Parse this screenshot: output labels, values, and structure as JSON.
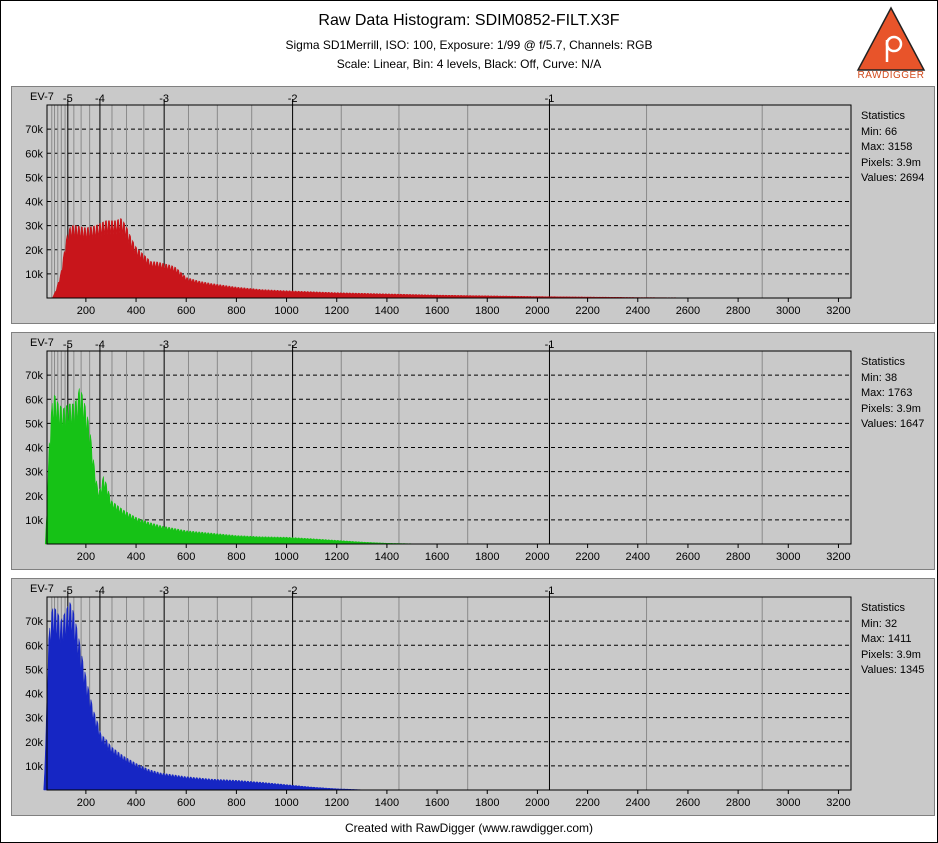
{
  "header": {
    "title": "Raw Data Histogram: SDIM0852-FILT.X3F",
    "subtitle1": "Sigma SD1Merrill, ISO: 100, Exposure: 1/99 @ f/5.7, Channels: RGB",
    "subtitle2": "Scale: Linear, Bin: 4 levels, Black: Off, Curve: N/A"
  },
  "logo": {
    "text": "RAWDIGGER",
    "color": "#e8542a"
  },
  "footer": "Created with RawDigger (www.rawdigger.com)",
  "colors": {
    "panel_bg": "#c9c9c9",
    "red": "#c8151b",
    "green": "#16c216",
    "blue": "#1626c4"
  },
  "chart_data": [
    {
      "type": "area",
      "channel": "red",
      "color": "#c8151b",
      "xlim": [
        45,
        3250
      ],
      "ylim": [
        0,
        80000
      ],
      "x_ticks": [
        200,
        400,
        600,
        800,
        1000,
        1200,
        1400,
        1600,
        1800,
        2000,
        2200,
        2400,
        2600,
        2800,
        3000,
        3200
      ],
      "y_ticks": [
        10000,
        20000,
        30000,
        40000,
        50000,
        60000,
        70000
      ],
      "y_tick_labels": [
        "10k",
        "20k",
        "30k",
        "40k",
        "50k",
        "60k",
        "70k"
      ],
      "ev_label": "EV-7",
      "ev_major": [
        {
          "label": "-5",
          "x": 128
        },
        {
          "label": "-4",
          "x": 256
        },
        {
          "label": "-3",
          "x": 512
        },
        {
          "label": "-2",
          "x": 1024
        },
        {
          "label": "-1",
          "x": 2048
        }
      ],
      "ev_minor": [
        64,
        75,
        88,
        102,
        117,
        152,
        181,
        215,
        304,
        362,
        431,
        609,
        724,
        861,
        1218,
        1448,
        1722,
        2435,
        2896
      ],
      "points": [
        [
          50,
          0
        ],
        [
          66,
          0
        ],
        [
          80,
          3000
        ],
        [
          100,
          10000
        ],
        [
          115,
          20000
        ],
        [
          125,
          26000
        ],
        [
          140,
          30000
        ],
        [
          160,
          30000
        ],
        [
          200,
          29000
        ],
        [
          240,
          30000
        ],
        [
          280,
          32000
        ],
        [
          320,
          32000
        ],
        [
          340,
          33000
        ],
        [
          360,
          30000
        ],
        [
          380,
          25000
        ],
        [
          400,
          21000
        ],
        [
          420,
          19000
        ],
        [
          440,
          17000
        ],
        [
          460,
          15000
        ],
        [
          480,
          15000
        ],
        [
          500,
          14500
        ],
        [
          520,
          14000
        ],
        [
          540,
          13500
        ],
        [
          560,
          12500
        ],
        [
          580,
          10500
        ],
        [
          600,
          8500
        ],
        [
          650,
          7000
        ],
        [
          700,
          6000
        ],
        [
          800,
          4500
        ],
        [
          900,
          3500
        ],
        [
          1000,
          3000
        ],
        [
          1200,
          2200
        ],
        [
          1400,
          1700
        ],
        [
          1600,
          1200
        ],
        [
          1800,
          900
        ],
        [
          2000,
          600
        ],
        [
          2200,
          400
        ],
        [
          2400,
          200
        ],
        [
          2600,
          80
        ],
        [
          2800,
          20
        ],
        [
          3000,
          5
        ],
        [
          3158,
          0
        ]
      ],
      "statistics": {
        "heading": "Statistics",
        "min": "Min: 66",
        "max": "Max: 3158",
        "pixels": "Pixels: 3.9m",
        "values": "Values: 2694"
      }
    },
    {
      "type": "area",
      "channel": "green",
      "color": "#16c216",
      "xlim": [
        45,
        3250
      ],
      "ylim": [
        0,
        80000
      ],
      "x_ticks": [
        200,
        400,
        600,
        800,
        1000,
        1200,
        1400,
        1600,
        1800,
        2000,
        2200,
        2400,
        2600,
        2800,
        3000,
        3200
      ],
      "y_ticks": [
        10000,
        20000,
        30000,
        40000,
        50000,
        60000,
        70000
      ],
      "y_tick_labels": [
        "10k",
        "20k",
        "30k",
        "40k",
        "50k",
        "60k",
        "70k"
      ],
      "ev_label": "EV-7",
      "ev_major": [
        {
          "label": "-5",
          "x": 128
        },
        {
          "label": "-4",
          "x": 256
        },
        {
          "label": "-3",
          "x": 512
        },
        {
          "label": "-2",
          "x": 1024
        },
        {
          "label": "-1",
          "x": 2048
        }
      ],
      "ev_minor": [
        64,
        75,
        88,
        102,
        117,
        152,
        181,
        215,
        304,
        362,
        431,
        609,
        724,
        861,
        1218,
        1448,
        1722,
        2435,
        2896
      ],
      "points": [
        [
          38,
          0
        ],
        [
          45,
          15000
        ],
        [
          55,
          45000
        ],
        [
          65,
          58000
        ],
        [
          75,
          62000
        ],
        [
          90,
          58000
        ],
        [
          110,
          56000
        ],
        [
          130,
          58000
        ],
        [
          150,
          58000
        ],
        [
          165,
          60000
        ],
        [
          175,
          65000
        ],
        [
          185,
          62000
        ],
        [
          200,
          56000
        ],
        [
          215,
          48000
        ],
        [
          230,
          35000
        ],
        [
          245,
          24000
        ],
        [
          255,
          22000
        ],
        [
          270,
          28000
        ],
        [
          285,
          24000
        ],
        [
          300,
          18000
        ],
        [
          350,
          14000
        ],
        [
          400,
          11000
        ],
        [
          450,
          9000
        ],
        [
          500,
          7500
        ],
        [
          600,
          5500
        ],
        [
          700,
          4500
        ],
        [
          800,
          3500
        ],
        [
          900,
          3000
        ],
        [
          1000,
          2800
        ],
        [
          1100,
          2200
        ],
        [
          1200,
          1500
        ],
        [
          1300,
          800
        ],
        [
          1400,
          300
        ],
        [
          1500,
          100
        ],
        [
          1600,
          30
        ],
        [
          1763,
          0
        ]
      ],
      "statistics": {
        "heading": "Statistics",
        "min": "Min: 38",
        "max": "Max: 1763",
        "pixels": "Pixels: 3.9m",
        "values": "Values: 1647"
      }
    },
    {
      "type": "area",
      "channel": "blue",
      "color": "#1626c4",
      "xlim": [
        45,
        3250
      ],
      "ylim": [
        0,
        80000
      ],
      "x_ticks": [
        200,
        400,
        600,
        800,
        1000,
        1200,
        1400,
        1600,
        1800,
        2000,
        2200,
        2400,
        2600,
        2800,
        3000,
        3200
      ],
      "y_ticks": [
        10000,
        20000,
        30000,
        40000,
        50000,
        60000,
        70000
      ],
      "y_tick_labels": [
        "10k",
        "20k",
        "30k",
        "40k",
        "50k",
        "60k",
        "70k"
      ],
      "ev_label": "EV-7",
      "ev_major": [
        {
          "label": "-5",
          "x": 128
        },
        {
          "label": "-4",
          "x": 256
        },
        {
          "label": "-3",
          "x": 512
        },
        {
          "label": "-2",
          "x": 1024
        },
        {
          "label": "-1",
          "x": 2048
        }
      ],
      "ev_minor": [
        64,
        75,
        88,
        102,
        117,
        152,
        181,
        215,
        304,
        362,
        431,
        609,
        724,
        861,
        1218,
        1448,
        1722,
        2435,
        2896
      ],
      "points": [
        [
          32,
          0
        ],
        [
          40,
          20000
        ],
        [
          50,
          60000
        ],
        [
          60,
          72000
        ],
        [
          70,
          76000
        ],
        [
          85,
          74000
        ],
        [
          100,
          70000
        ],
        [
          120,
          74000
        ],
        [
          135,
          78000
        ],
        [
          150,
          74000
        ],
        [
          170,
          64000
        ],
        [
          190,
          52000
        ],
        [
          210,
          42000
        ],
        [
          230,
          33000
        ],
        [
          240,
          30000
        ],
        [
          250,
          27000
        ],
        [
          260,
          23000
        ],
        [
          280,
          21000
        ],
        [
          300,
          18000
        ],
        [
          350,
          14000
        ],
        [
          400,
          11000
        ],
        [
          450,
          8500
        ],
        [
          500,
          7000
        ],
        [
          600,
          5500
        ],
        [
          700,
          4500
        ],
        [
          800,
          4000
        ],
        [
          900,
          3200
        ],
        [
          1000,
          2200
        ],
        [
          1100,
          1200
        ],
        [
          1200,
          500
        ],
        [
          1300,
          100
        ],
        [
          1411,
          0
        ]
      ],
      "statistics": {
        "heading": "Statistics",
        "min": "Min: 32",
        "max": "Max: 1411",
        "pixels": "Pixels: 3.9m",
        "values": "Values: 1345"
      }
    }
  ]
}
